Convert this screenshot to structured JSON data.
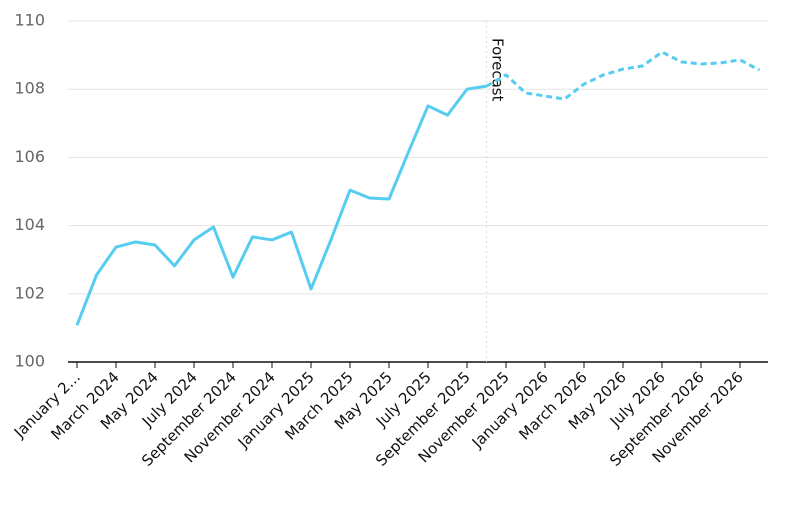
{
  "chart_data": {
    "type": "line",
    "categories": [
      "January 2...",
      null,
      "March 2024",
      null,
      "May 2024",
      null,
      "July 2024",
      null,
      "September 2024",
      null,
      "November 2024",
      null,
      "January 2025",
      null,
      "March 2025",
      null,
      "May 2025",
      null,
      "July 2025",
      null,
      "September 2025",
      null,
      "November 2025",
      null,
      "January 2026",
      null,
      "March 2026",
      null,
      "May 2026",
      null,
      "July 2026",
      null,
      "September 2026",
      null,
      "November 2026",
      null
    ],
    "series": [
      {
        "color": "#56cdf0",
        "dashed": false,
        "values": [
          101.08,
          102.55,
          103.37,
          103.52,
          103.43,
          102.82,
          103.58,
          103.96,
          102.49,
          103.67,
          103.58,
          103.81,
          102.14,
          103.55,
          105.04,
          104.81,
          104.78,
          106.16,
          107.51,
          107.24,
          108.0,
          108.09,
          null,
          null,
          null,
          null,
          null,
          null,
          null,
          null,
          null,
          null,
          null,
          null,
          null,
          null
        ]
      },
      {
        "color": "#56cdf0",
        "dashed": true,
        "values": [
          null,
          null,
          null,
          null,
          null,
          null,
          null,
          null,
          null,
          null,
          null,
          null,
          null,
          null,
          null,
          null,
          null,
          null,
          null,
          null,
          null,
          108.09,
          108.42,
          107.89,
          107.8,
          107.71,
          108.15,
          108.42,
          108.59,
          108.68,
          109.09,
          108.8,
          108.74,
          108.77,
          108.86,
          108.56
        ]
      }
    ],
    "annotation": "Forecast",
    "ylim": [
      100,
      110
    ],
    "yticks": [
      100,
      102,
      104,
      106,
      108,
      110
    ],
    "grid": true
  }
}
